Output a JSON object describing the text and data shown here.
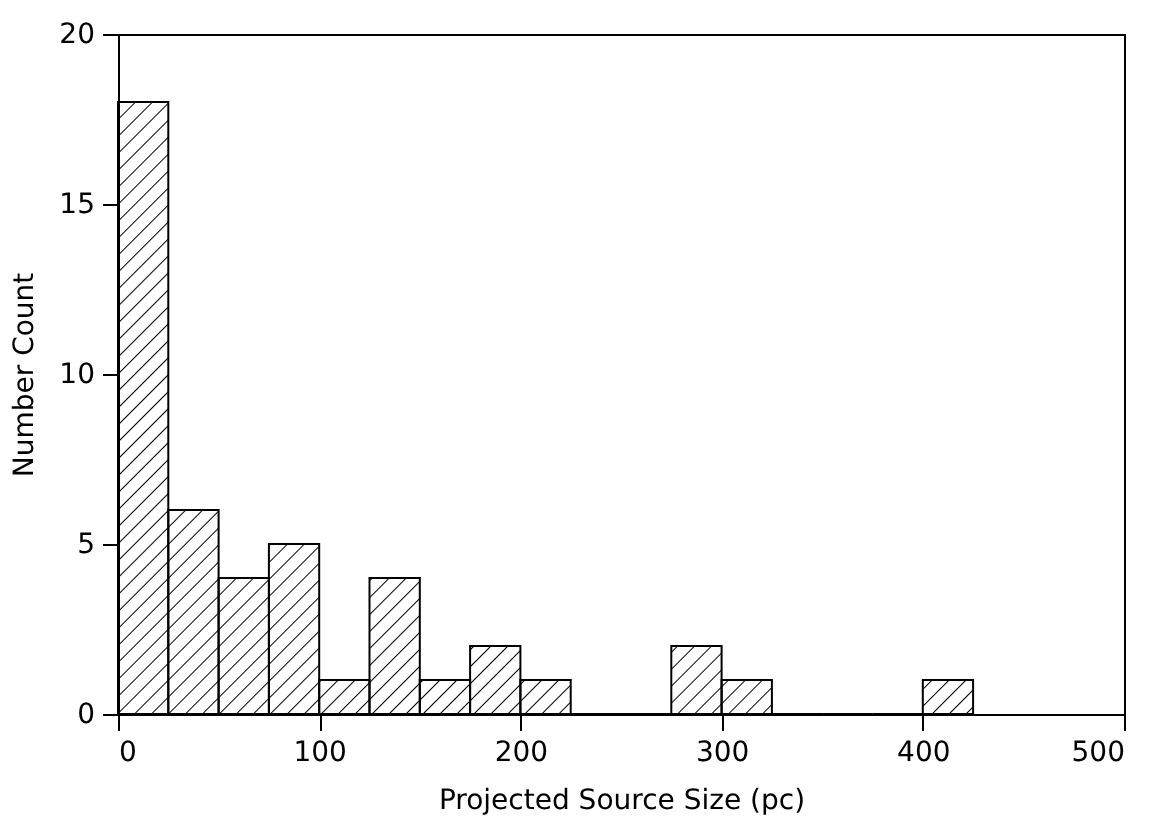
{
  "chart_data": {
    "type": "histogram",
    "xlabel": "Projected Source Size (pc)",
    "ylabel": "Number Count",
    "bins": [
      0,
      25,
      50,
      75,
      100,
      125,
      150,
      175,
      200,
      225,
      250,
      275,
      300,
      325,
      350,
      375,
      400,
      425
    ],
    "values": [
      18,
      6,
      4,
      5,
      1,
      4,
      1,
      2,
      1,
      0,
      0,
      2,
      1,
      0,
      0,
      0,
      1
    ],
    "color": "#000000",
    "xlim": [
      0,
      500
    ],
    "xticks": [
      0,
      100,
      200,
      300,
      400,
      500
    ],
    "ylim": [
      0,
      20
    ],
    "yticks": [
      0,
      5,
      10,
      15,
      20
    ]
  }
}
